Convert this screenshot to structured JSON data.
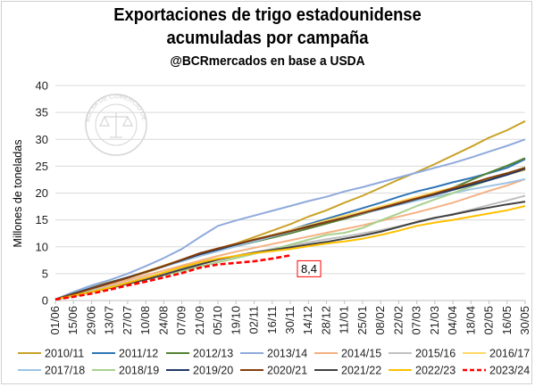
{
  "header": {
    "title_line1": "Exportaciones de trigo estadounidense",
    "title_line2": "acumuladas por campaña",
    "subtitle": "@BCRmercados en base a USDA"
  },
  "watermark": {
    "text": "BOLSA DE COMERCIO DE ROSARIO",
    "icon": "scales-of-justice-seal"
  },
  "chart_data": {
    "type": "line",
    "ylabel": "Millones de toneladas",
    "ylim": [
      0,
      40
    ],
    "yticks": [
      0,
      5,
      10,
      15,
      20,
      25,
      30,
      35,
      40
    ],
    "grid": true,
    "legend_placement": "bottom",
    "categories": [
      "01/06",
      "15/06",
      "29/06",
      "13/07",
      "27/07",
      "10/08",
      "24/08",
      "07/09",
      "21/09",
      "05/10",
      "19/10",
      "02/11",
      "16/11",
      "30/11",
      "14/12",
      "28/12",
      "11/01",
      "25/01",
      "08/02",
      "22/02",
      "07/03",
      "21/03",
      "04/04",
      "18/04",
      "02/05",
      "16/05",
      "30/05"
    ],
    "series": [
      {
        "name": "2010/11",
        "color": "#c9a227",
        "values": [
          0.2,
          1.6,
          2.6,
          3.4,
          4.3,
          5.4,
          6.5,
          7.6,
          8.8,
          9.7,
          10.6,
          11.8,
          13.0,
          14.2,
          15.6,
          16.8,
          18.2,
          19.5,
          21.0,
          22.5,
          23.9,
          25.4,
          27.0,
          28.6,
          30.3,
          31.7,
          33.4
        ]
      },
      {
        "name": "2011/12",
        "color": "#2e75b6",
        "values": [
          0.2,
          1.4,
          2.4,
          3.3,
          4.2,
          5.2,
          6.3,
          7.4,
          8.6,
          9.5,
          10.4,
          11.3,
          12.2,
          13.1,
          14.2,
          15.2,
          16.2,
          17.2,
          18.2,
          19.3,
          20.3,
          21.1,
          22.0,
          22.8,
          23.7,
          24.7,
          26.3
        ]
      },
      {
        "name": "2012/13",
        "color": "#548235",
        "values": [
          0.2,
          1.4,
          2.3,
          3.2,
          4.2,
          5.2,
          6.3,
          7.4,
          8.4,
          9.3,
          10.1,
          10.9,
          11.7,
          12.5,
          13.4,
          14.3,
          15.2,
          16.1,
          17.1,
          18.0,
          19.1,
          20.1,
          21.0,
          22.4,
          23.8,
          25.1,
          26.5
        ]
      },
      {
        "name": "2013/14",
        "color": "#8faadc",
        "values": [
          0.2,
          1.6,
          2.8,
          3.8,
          5.0,
          6.4,
          7.9,
          9.6,
          11.8,
          13.9,
          14.9,
          15.8,
          16.7,
          17.6,
          18.5,
          19.3,
          20.3,
          21.1,
          22.0,
          22.9,
          23.8,
          24.7,
          25.6,
          26.6,
          27.7,
          28.8,
          30.0
        ]
      },
      {
        "name": "2014/15",
        "color": "#f4b183",
        "values": [
          0.2,
          1.2,
          2.1,
          2.9,
          3.8,
          4.7,
          5.6,
          6.5,
          7.4,
          8.3,
          9.1,
          9.8,
          10.5,
          11.2,
          11.9,
          12.6,
          13.3,
          14.0,
          14.8,
          15.6,
          16.4,
          17.3,
          18.2,
          19.3,
          20.4,
          21.4,
          22.6
        ]
      },
      {
        "name": "2015/16",
        "color": "#c0c0c0",
        "values": [
          0.2,
          1.1,
          1.9,
          2.6,
          3.4,
          4.3,
          5.1,
          5.9,
          6.8,
          7.6,
          8.3,
          9.0,
          9.6,
          10.2,
          10.8,
          11.4,
          11.9,
          12.5,
          13.1,
          13.8,
          14.5,
          15.3,
          16.1,
          16.9,
          17.8,
          18.6,
          19.5
        ]
      },
      {
        "name": "2016/17",
        "color": "#ffd966",
        "values": [
          0.2,
          1.3,
          2.3,
          3.2,
          4.2,
          5.2,
          6.3,
          7.4,
          8.5,
          9.5,
          10.5,
          11.4,
          12.2,
          13.1,
          14.0,
          14.9,
          15.8,
          16.6,
          17.5,
          18.4,
          19.3,
          20.2,
          21.0,
          21.8,
          22.7,
          23.5,
          24.3
        ]
      },
      {
        "name": "2017/18",
        "color": "#9dc3e6",
        "values": [
          0.2,
          1.4,
          2.4,
          3.3,
          4.3,
          5.3,
          6.3,
          7.3,
          8.3,
          9.2,
          10.1,
          11.0,
          11.9,
          12.8,
          13.7,
          14.6,
          15.4,
          16.2,
          17.0,
          17.8,
          18.6,
          19.3,
          20.0,
          20.7,
          21.3,
          21.9,
          22.6
        ]
      },
      {
        "name": "2018/19",
        "color": "#a9d18e",
        "values": [
          0.2,
          1.0,
          1.7,
          2.4,
          3.1,
          3.9,
          4.7,
          5.5,
          6.3,
          7.1,
          7.9,
          8.7,
          9.5,
          10.4,
          11.3,
          12.2,
          12.6,
          13.5,
          14.9,
          16.2,
          17.6,
          18.8,
          20.0,
          21.2,
          22.4,
          23.6,
          24.8
        ]
      },
      {
        "name": "2019/20",
        "color": "#1f3864",
        "values": [
          0.2,
          1.3,
          2.3,
          3.3,
          4.3,
          5.3,
          6.4,
          7.5,
          8.6,
          9.5,
          10.4,
          11.3,
          12.1,
          12.9,
          13.8,
          14.6,
          15.4,
          16.3,
          17.1,
          18.0,
          18.9,
          19.7,
          20.6,
          21.5,
          22.4,
          23.4,
          24.5
        ]
      },
      {
        "name": "2020/21",
        "color": "#843c0c",
        "values": [
          0.2,
          1.2,
          2.2,
          3.2,
          4.2,
          5.3,
          6.4,
          7.6,
          8.8,
          9.7,
          10.5,
          11.3,
          12.1,
          12.9,
          13.7,
          14.6,
          15.4,
          16.3,
          17.2,
          18.1,
          19.0,
          19.9,
          20.9,
          21.8,
          22.8,
          23.7,
          24.7
        ]
      },
      {
        "name": "2021/22",
        "color": "#404040",
        "values": [
          0.2,
          0.9,
          1.6,
          2.3,
          3.1,
          3.9,
          4.8,
          5.8,
          6.7,
          7.6,
          8.3,
          8.9,
          9.4,
          9.9,
          10.4,
          10.9,
          11.5,
          12.1,
          12.8,
          13.7,
          14.6,
          15.4,
          16.0,
          16.7,
          17.3,
          17.9,
          18.4
        ]
      },
      {
        "name": "2022/23",
        "color": "#ffc000",
        "values": [
          0.2,
          0.9,
          1.6,
          2.4,
          3.3,
          4.2,
          5.2,
          6.2,
          7.1,
          7.8,
          8.3,
          8.8,
          9.2,
          9.6,
          10.1,
          10.6,
          11.0,
          11.5,
          12.2,
          13.0,
          13.9,
          14.5,
          15.0,
          15.6,
          16.2,
          16.8,
          17.6
        ]
      },
      {
        "name": "2023/24",
        "color": "#ff0000",
        "dashed": true,
        "values": [
          0.2,
          0.7,
          1.3,
          2.0,
          2.8,
          3.5,
          4.3,
          5.1,
          6.1,
          6.7,
          7.0,
          7.3,
          7.8,
          8.4,
          null,
          null,
          null,
          null,
          null,
          null,
          null,
          null,
          null,
          null,
          null,
          null,
          null
        ]
      }
    ],
    "annotations": [
      {
        "series": "2023/24",
        "category": "30/11",
        "text": "8,4"
      }
    ]
  }
}
